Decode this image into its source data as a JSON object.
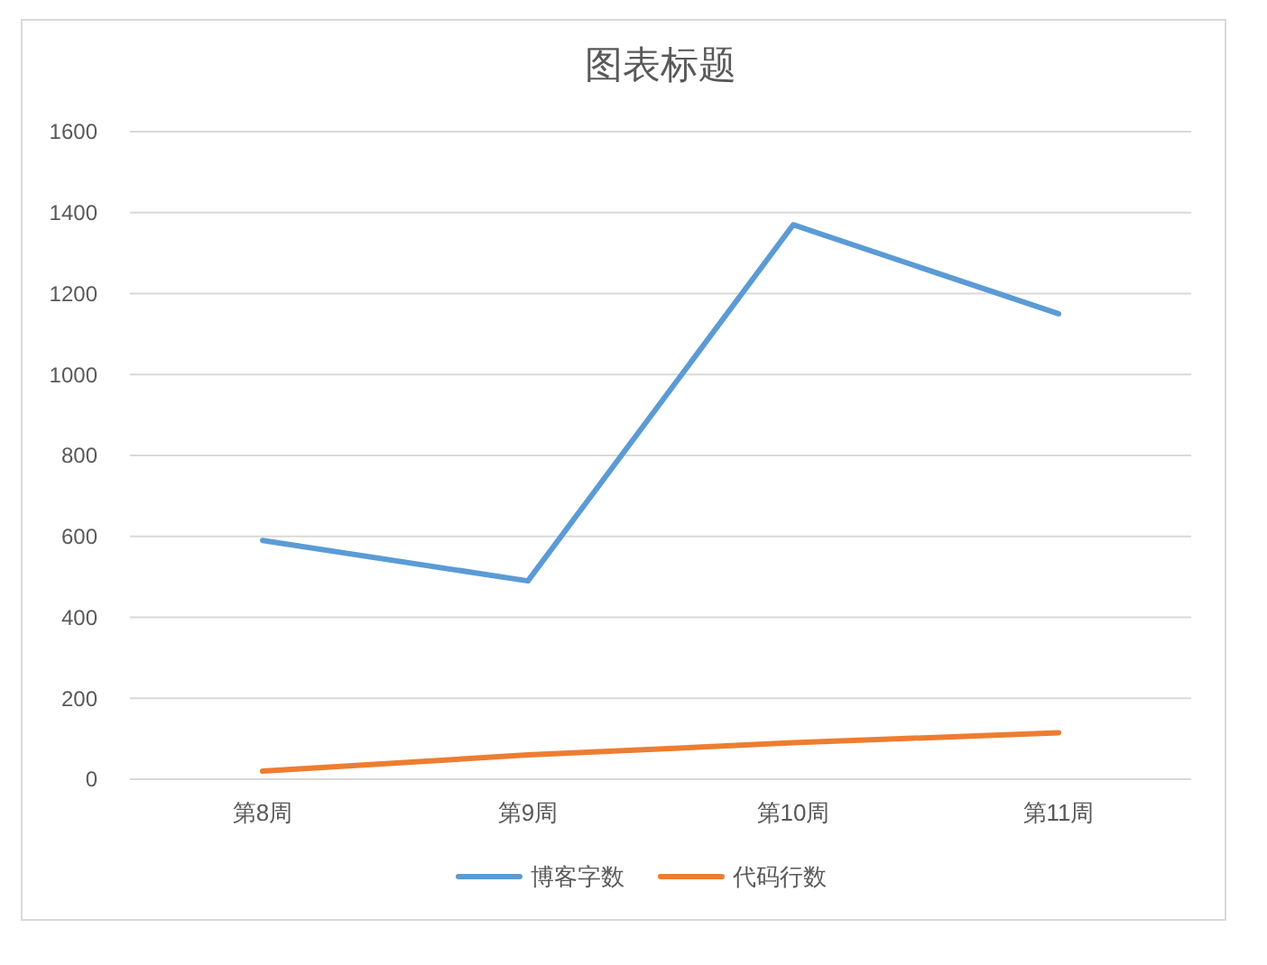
{
  "chart_data": {
    "type": "line",
    "title": "图表标题",
    "categories": [
      "第8周",
      "第9周",
      "第10周",
      "第11周"
    ],
    "series": [
      {
        "name": "博客字数",
        "color": "#5b9bd5",
        "values": [
          590,
          490,
          1370,
          1150
        ]
      },
      {
        "name": "代码行数",
        "color": "#ed7d31",
        "values": [
          20,
          60,
          90,
          115
        ]
      }
    ],
    "ylim": [
      0,
      1600
    ],
    "yticks": [
      0,
      200,
      400,
      600,
      800,
      1000,
      1200,
      1400,
      1600
    ],
    "grid": "y",
    "legend": "bottom",
    "marker": "none",
    "line_style": "solid"
  }
}
